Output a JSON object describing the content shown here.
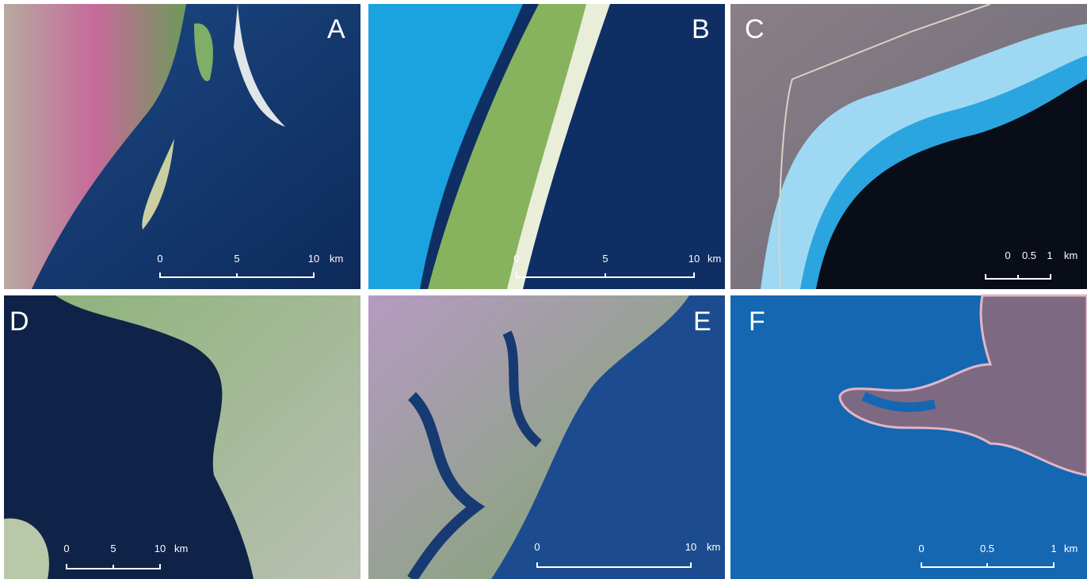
{
  "panels": [
    {
      "label": "A",
      "scale": {
        "ticks": [
          "0",
          "5",
          "10"
        ],
        "unit": "km"
      }
    },
    {
      "label": "B",
      "scale": {
        "ticks": [
          "0",
          "5",
          "10"
        ],
        "unit": "km"
      }
    },
    {
      "label": "C",
      "scale": {
        "ticks": [
          "0",
          "0.5",
          "1"
        ],
        "unit": "km"
      }
    },
    {
      "label": "D",
      "scale": {
        "ticks": [
          "0",
          "5",
          "10"
        ],
        "unit": "km"
      }
    },
    {
      "label": "E",
      "scale": {
        "ticks": [
          "0",
          "10"
        ],
        "unit": "km"
      }
    },
    {
      "label": "F",
      "scale": {
        "ticks": [
          "0",
          "0.5",
          "1"
        ],
        "unit": "km"
      }
    }
  ]
}
